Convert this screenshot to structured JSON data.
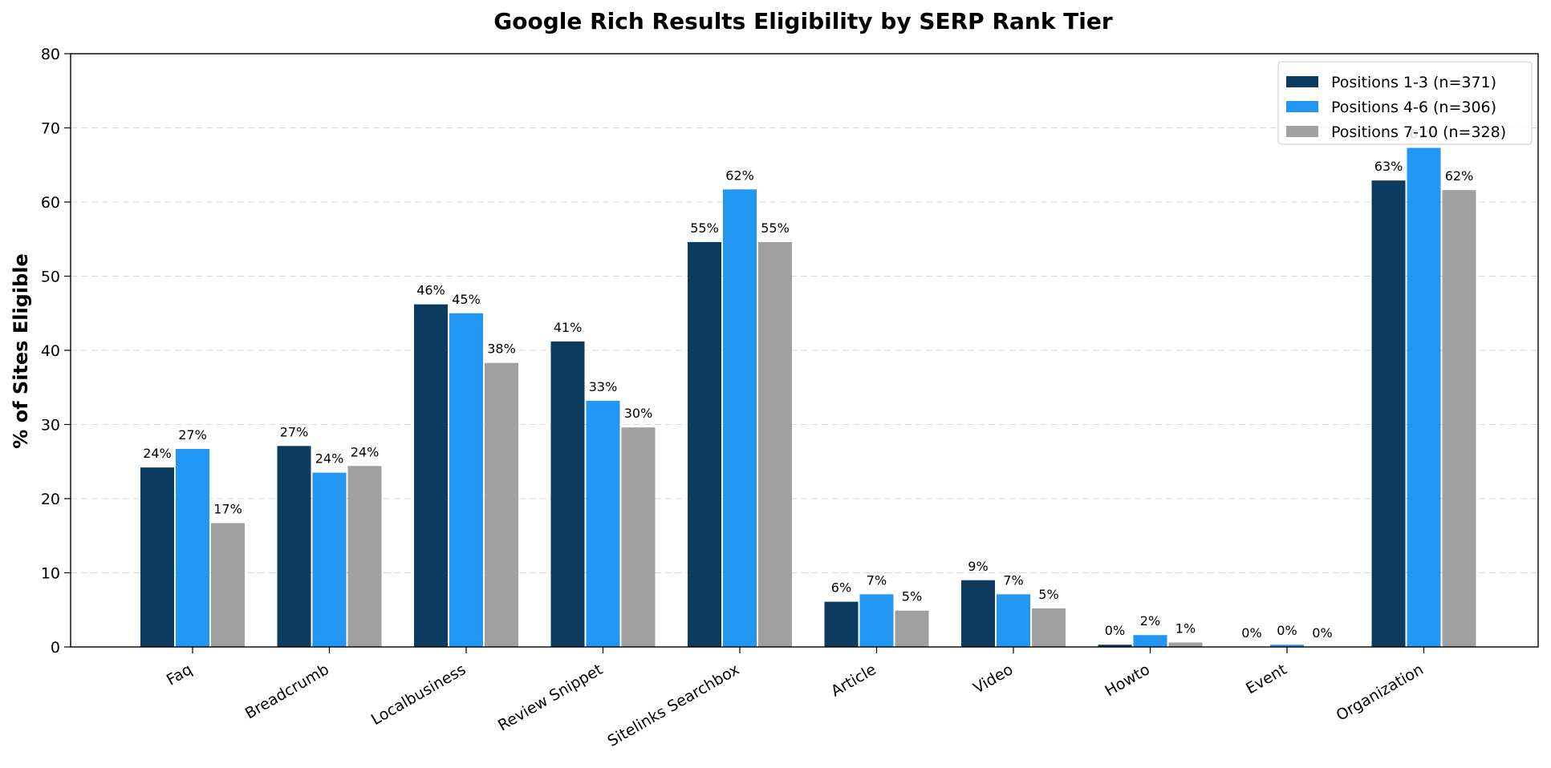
{
  "chart_data": {
    "type": "bar",
    "title": "Google Rich Results Eligibility by SERP Rank Tier",
    "xlabel": "",
    "ylabel": "% of Sites Eligible",
    "ylim": [
      0,
      80
    ],
    "yticks": [
      0,
      10,
      20,
      30,
      40,
      50,
      60,
      70,
      80
    ],
    "grid": "horizontal dashed",
    "legend_position": "top-right",
    "categories": [
      "Faq",
      "Breadcrumb",
      "Localbusiness",
      "Review Snippet",
      "Sitelinks Searchbox",
      "Article",
      "Video",
      "Howto",
      "Event",
      "Organization"
    ],
    "series": [
      {
        "name": "Positions 1-3 (n=371)",
        "color": "#0d3b5f",
        "values": [
          24.2,
          27.1,
          46.2,
          41.2,
          54.6,
          6.1,
          9.0,
          0.3,
          0.0,
          62.9
        ],
        "labels": [
          "24%",
          "27%",
          "46%",
          "41%",
          "55%",
          "6%",
          "9%",
          "0%",
          "0%",
          "63%"
        ]
      },
      {
        "name": "Positions 4-6 (n=306)",
        "color": "#2196f3",
        "values": [
          26.7,
          23.5,
          45.0,
          33.2,
          61.7,
          7.1,
          7.1,
          1.6,
          0.3,
          67.3
        ],
        "labels": [
          "27%",
          "24%",
          "45%",
          "33%",
          "62%",
          "7%",
          "7%",
          "2%",
          "0%",
          "67%"
        ]
      },
      {
        "name": "Positions 7-10 (n=328)",
        "color": "#a0a0a0",
        "values": [
          16.7,
          24.4,
          38.3,
          29.6,
          54.6,
          4.9,
          5.2,
          0.6,
          0.0,
          61.6
        ],
        "labels": [
          "17%",
          "24%",
          "38%",
          "30%",
          "55%",
          "5%",
          "5%",
          "1%",
          "0%",
          "62%"
        ]
      }
    ]
  }
}
